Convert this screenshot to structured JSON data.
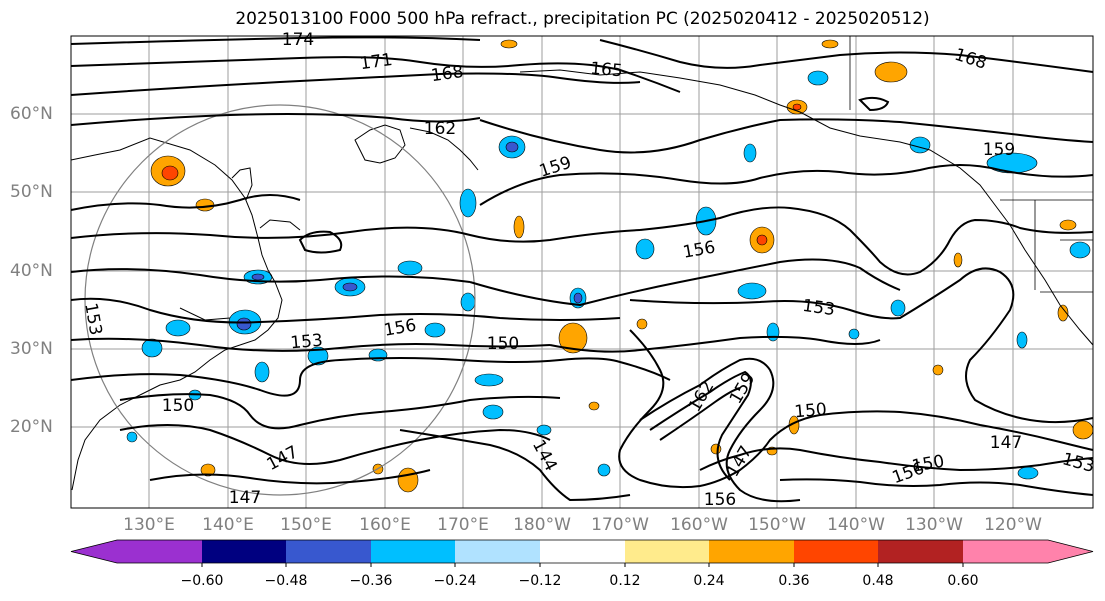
{
  "title": "2025013100 F000 500 hPa refract., precipitation PC (2025020412 - 2025020512)",
  "lat_labels": [
    "60°N",
    "50°N",
    "40°N",
    "30°N",
    "20°N"
  ],
  "lon_labels": [
    "130°E",
    "140°E",
    "150°E",
    "160°E",
    "170°E",
    "180°W",
    "170°W",
    "160°W",
    "150°W",
    "140°W",
    "130°W",
    "120°W"
  ],
  "contour_labels": [
    "174",
    "171",
    "168",
    "165",
    "168",
    "162",
    "159",
    "159",
    "156",
    "156",
    "153",
    "153",
    "150",
    "150",
    "150",
    "150",
    "147",
    "147",
    "147",
    "147",
    "144",
    "153",
    "156",
    "159",
    "162",
    "153",
    "156"
  ],
  "colorbar": {
    "tick_labels": [
      "−0.60",
      "−0.48",
      "−0.36",
      "−0.24",
      "−0.12",
      "0.12",
      "0.24",
      "0.36",
      "0.48",
      "0.60"
    ],
    "colors": [
      "#9b30d0",
      "#000080",
      "#3858cf",
      "#00bfff",
      "#b0e2ff",
      "#ffffff",
      "#ffeb8c",
      "#ffa500",
      "#ff4500",
      "#b22222",
      "#ff82ab"
    ]
  }
}
